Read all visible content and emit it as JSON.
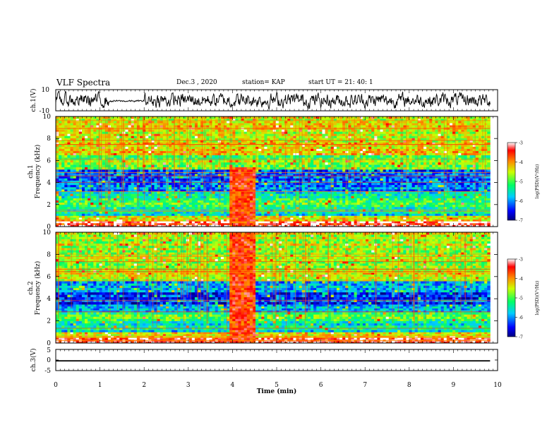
{
  "header": {
    "title": "VLF Spectra",
    "date": "Dec.3 , 2020",
    "station": "station= KAP",
    "start": "start UT = 21: 40: 1"
  },
  "chart_data": [
    {
      "type": "line",
      "panel": "ch1-waveform",
      "ylabel": "ch.1(V)",
      "ylim": [
        -10,
        10
      ],
      "yticks": [
        "10",
        "-10"
      ],
      "xlim": [
        0,
        9.83
      ],
      "description_values": "noisy waveform mostly between -8 and 8 V; quieter segment (~ -2 to 1 V) between 1.2 and 2.0 min"
    },
    {
      "type": "heatmap",
      "panel": "ch1-spectrogram",
      "ylabel": "ch.1\nFrequency (kHz)",
      "ylim": [
        0,
        10
      ],
      "yticks": [
        "0",
        "2",
        "4",
        "6",
        "8",
        "10"
      ],
      "xlim": [
        0,
        9.83
      ],
      "colorbar": {
        "label": "log(PSD)(V²/Hz)",
        "range": [
          -7,
          -3
        ],
        "ticks": [
          "-3",
          "-4",
          "-5",
          "-6",
          "-7"
        ]
      },
      "bands_khz": [
        {
          "from": 0,
          "to": 0.5,
          "level": -3.3
        },
        {
          "from": 0.5,
          "to": 1.0,
          "level": -4.2
        },
        {
          "from": 1.0,
          "to": 1.8,
          "level": -5.5
        },
        {
          "from": 1.8,
          "to": 2.6,
          "level": -5.0
        },
        {
          "from": 2.6,
          "to": 3.2,
          "level": -5.6
        },
        {
          "from": 3.2,
          "to": 4.2,
          "level": -5.9
        },
        {
          "from": 4.2,
          "to": 5.2,
          "level": -6.2
        },
        {
          "from": 5.2,
          "to": 6.5,
          "level": -4.8
        },
        {
          "from": 6.5,
          "to": 10,
          "level": -4.4
        }
      ],
      "event": {
        "t_from": 3.9,
        "t_to": 4.5,
        "f_to_khz": 5.6,
        "level": -3.6
      }
    },
    {
      "type": "heatmap",
      "panel": "ch2-spectrogram",
      "ylabel": "ch.2\nFrequency (kHz)",
      "ylim": [
        0,
        10
      ],
      "yticks": [
        "0",
        "2",
        "4",
        "6",
        "8",
        "10"
      ],
      "xlim": [
        0,
        9.83
      ],
      "colorbar": {
        "label": "log(PSD)(V²/Hz)",
        "range": [
          -7,
          -3
        ],
        "ticks": [
          "-3",
          "-4",
          "-5",
          "-6",
          "-7"
        ]
      },
      "bands_khz": [
        {
          "from": 0,
          "to": 0.5,
          "level": -3.3
        },
        {
          "from": 0.5,
          "to": 1.0,
          "level": -4.4
        },
        {
          "from": 1.0,
          "to": 2.0,
          "level": -5.6
        },
        {
          "from": 2.0,
          "to": 2.8,
          "level": -5.0
        },
        {
          "from": 2.8,
          "to": 3.5,
          "level": -5.7
        },
        {
          "from": 3.5,
          "to": 4.6,
          "level": -6.3
        },
        {
          "from": 4.6,
          "to": 5.6,
          "level": -5.9
        },
        {
          "from": 5.6,
          "to": 10,
          "level": -4.6
        }
      ],
      "event": {
        "t_from": 3.9,
        "t_to": 4.5,
        "f_to_khz": 10,
        "level": -3.6
      }
    },
    {
      "type": "line",
      "panel": "ch3-waveform",
      "ylabel": "ch.3(V)",
      "ylim": [
        -5,
        5
      ],
      "yticks": [
        "5",
        "0",
        "-5"
      ],
      "xlim": [
        0,
        9.83
      ],
      "description_values": "thick band between about -0.7 and -0.1 V across full time range"
    }
  ],
  "xaxis": {
    "label": "Time (min)",
    "ticks": [
      "0",
      "1",
      "2",
      "3",
      "4",
      "5",
      "6",
      "7",
      "8",
      "9",
      "10"
    ],
    "range": [
      0,
      10
    ]
  }
}
